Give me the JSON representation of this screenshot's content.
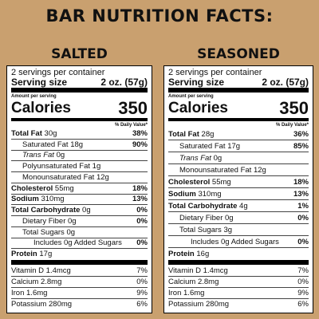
{
  "title": "BAR NUTRITION FACTS:",
  "labels": [
    {
      "heading": "SALTED",
      "servings": "2 servings per container",
      "serving_size_label": "Serving size",
      "serving_size": "2 oz. (57g)",
      "amount_per_serving": "Amount per serving",
      "calories_label": "Calories",
      "calories": "350",
      "daily_value_header": "% Daily Value*",
      "rows": [
        {
          "name": "Total Fat",
          "amount": "30g",
          "dv": "38%"
        },
        {
          "name": "Saturated Fat",
          "amount": "18g",
          "dv": "90%"
        },
        {
          "name": "Trans Fat",
          "amount": "0g"
        },
        {
          "name": "Polyunsaturated Fat",
          "amount": "1g"
        },
        {
          "name": "Monounsaturated Fat",
          "amount": "12g"
        },
        {
          "name": "Cholesterol",
          "amount": "55mg",
          "dv": "18%"
        },
        {
          "name": "Sodium",
          "amount": "310mg",
          "dv": "13%"
        },
        {
          "name": "Total Carbohydrate",
          "amount": "0g",
          "dv": "0%"
        },
        {
          "name": "Dietary Fiber",
          "amount": "0g",
          "dv": "0%"
        },
        {
          "name": "Total Sugars",
          "amount": "0g"
        },
        {
          "name": "Includes 0g Added Sugars",
          "dv": "0%"
        },
        {
          "name": "Protein",
          "amount": "17g"
        }
      ],
      "vitamins": [
        {
          "name": "Vitamin D",
          "amount": "1.4mcg",
          "dv": "7%"
        },
        {
          "name": "Calcium",
          "amount": "2.8mg",
          "dv": "0%"
        },
        {
          "name": "Iron",
          "amount": "1.6mg",
          "dv": "9%"
        },
        {
          "name": "Potassium",
          "amount": "280mg",
          "dv": "6%"
        }
      ]
    },
    {
      "heading": "SEASONED",
      "servings": "2 servings per container",
      "serving_size_label": "Serving size",
      "serving_size": "2 oz. (57g)",
      "amount_per_serving": "Amount per serving",
      "calories_label": "Calories",
      "calories": "350",
      "daily_value_header": "% Daily Value*",
      "rows": [
        {
          "name": "Total Fat",
          "amount": "28g",
          "dv": "36%"
        },
        {
          "name": "Saturated Fat",
          "amount": "17g",
          "dv": "85%"
        },
        {
          "name": "Trans Fat",
          "amount": "0g"
        },
        {
          "name": "Monounsaturated Fat",
          "amount": "12g"
        },
        {
          "name": "Cholesterol",
          "amount": "55mg",
          "dv": "18%"
        },
        {
          "name": "Sodium",
          "amount": "310mg",
          "dv": "13%"
        },
        {
          "name": "Total Carbohydrate",
          "amount": "4g",
          "dv": "1%"
        },
        {
          "name": "Dietary Fiber",
          "amount": "0g",
          "dv": "0%"
        },
        {
          "name": "Total Sugars",
          "amount": "3g"
        },
        {
          "name": "Includes 0g Added Sugars",
          "dv": "0%"
        },
        {
          "name": "Protein",
          "amount": "16g"
        }
      ],
      "vitamins": [
        {
          "name": "Vitamin D",
          "amount": "1.4mcg",
          "dv": "7%"
        },
        {
          "name": "Calcium",
          "amount": "2.8mg",
          "dv": "0%"
        },
        {
          "name": "Iron",
          "amount": "1.6mg",
          "dv": "9%"
        },
        {
          "name": "Potassium",
          "amount": "280mg",
          "dv": "6%"
        }
      ]
    }
  ]
}
